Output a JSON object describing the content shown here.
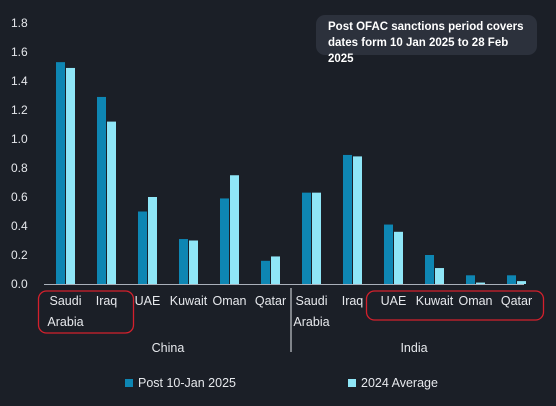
{
  "chart_data": {
    "type": "bar",
    "ylim": [
      0,
      1.8
    ],
    "yticks": [
      "0.0",
      "0.2",
      "0.4",
      "0.6",
      "0.8",
      "1.0",
      "1.2",
      "1.4",
      "1.6",
      "1.8"
    ],
    "groups": [
      {
        "name": "China",
        "categories": [
          "Saudi Arabia",
          "Iraq",
          "UAE",
          "Kuwait",
          "Oman",
          "Qatar"
        ]
      },
      {
        "name": "India",
        "categories": [
          "Saudi Arabia",
          "Iraq",
          "UAE",
          "Kuwait",
          "Oman",
          "Qatar"
        ]
      }
    ],
    "series": [
      {
        "name": "Post 10-Jan 2025",
        "color": "#0e86b3",
        "values": [
          1.53,
          1.29,
          0.5,
          0.31,
          0.59,
          0.16,
          0.63,
          0.89,
          0.41,
          0.2,
          0.06,
          0.06
        ]
      },
      {
        "name": "2024 Average",
        "color": "#8fe6f7",
        "values": [
          1.49,
          1.12,
          0.6,
          0.3,
          0.75,
          0.19,
          0.63,
          0.88,
          0.36,
          0.11,
          0.01,
          0.02
        ]
      }
    ],
    "highlight_color": "#d4202c",
    "annotation": "Post OFAC sanctions period covers dates form 10 Jan 2025 to 28 Feb 2025",
    "legend_position": "bottom",
    "grid": false
  }
}
